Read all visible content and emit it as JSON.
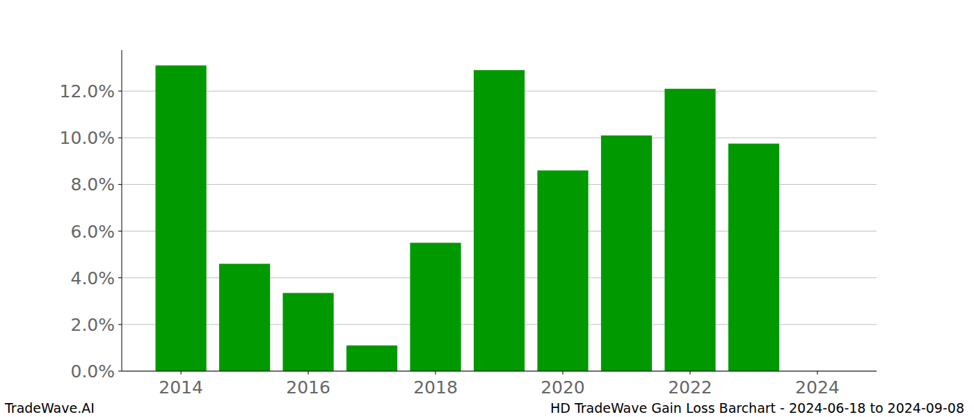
{
  "chart_data": {
    "type": "bar",
    "title": "HD TradeWave Gain Loss Barchart - 2024-06-18 to 2024-09-08",
    "source": "TradeWave.AI",
    "x": [
      2014,
      2015,
      2016,
      2017,
      2018,
      2019,
      2020,
      2021,
      2022,
      2023
    ],
    "values": [
      13.1,
      4.6,
      3.35,
      1.1,
      5.5,
      12.9,
      8.6,
      10.1,
      12.1,
      9.75
    ],
    "color": "#009900",
    "xlim": [
      2013.07,
      2024.93
    ],
    "xticks": [
      2014,
      2016,
      2018,
      2020,
      2022,
      2024
    ],
    "ylim": [
      0,
      13.76
    ],
    "yticks": [
      {
        "value": 0,
        "label": "0.0%"
      },
      {
        "value": 2,
        "label": "2.0%"
      },
      {
        "value": 4,
        "label": "4.0%"
      },
      {
        "value": 6,
        "label": "6.0%"
      },
      {
        "value": 8,
        "label": "8.0%"
      },
      {
        "value": 10,
        "label": "10.0%"
      },
      {
        "value": 12,
        "label": "12.0%"
      }
    ],
    "grid": true
  }
}
